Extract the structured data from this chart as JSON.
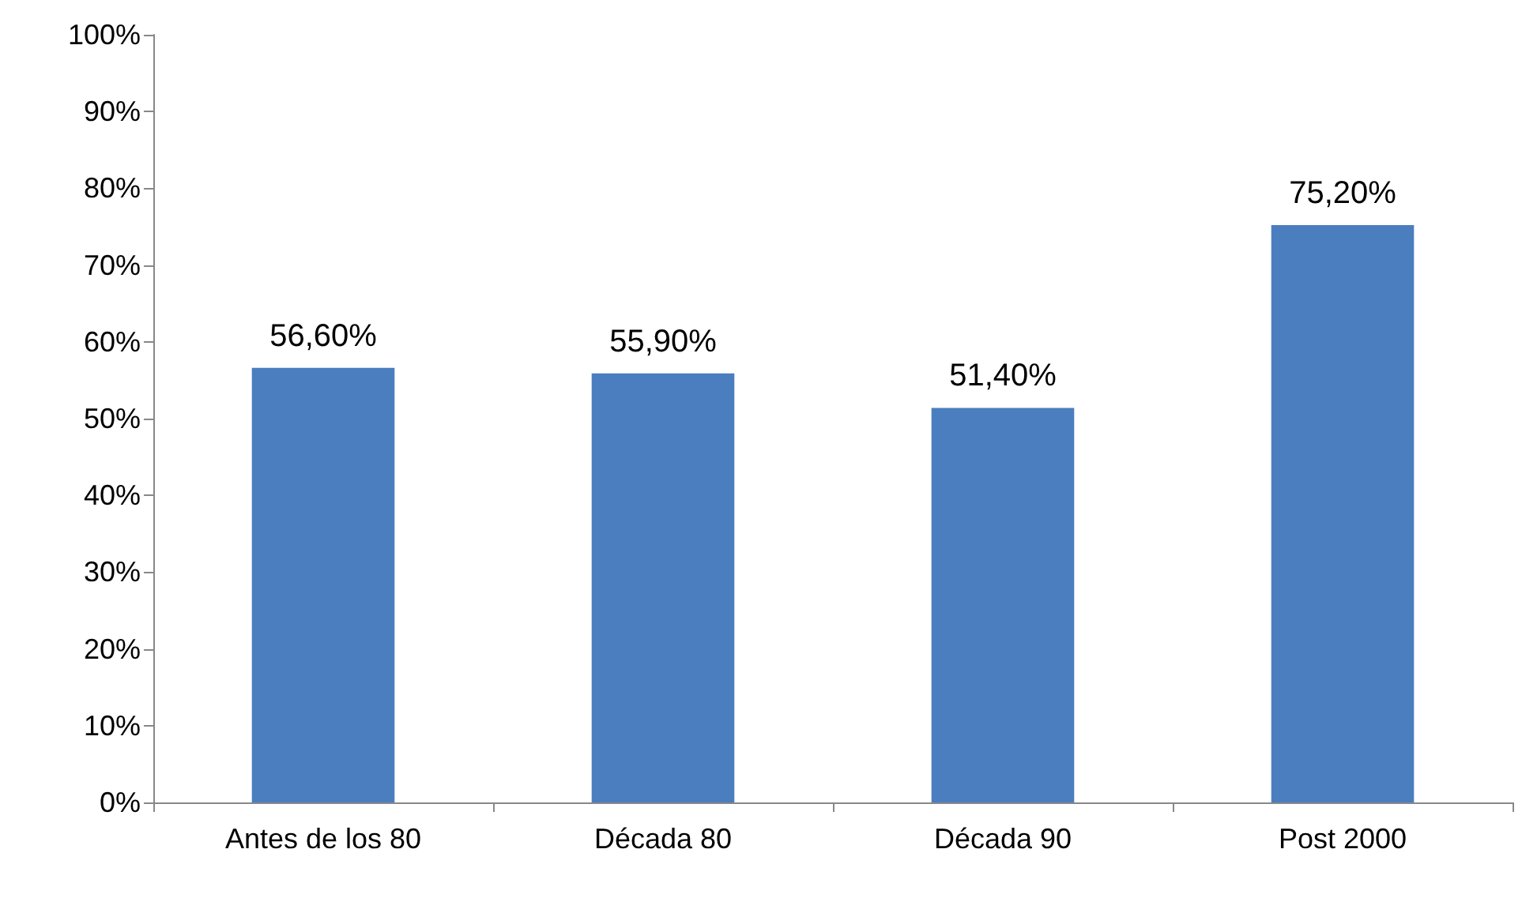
{
  "chart_data": {
    "type": "bar",
    "categories": [
      "Antes de los 80",
      "Década 80",
      "Década 90",
      "Post 2000"
    ],
    "values": [
      56.6,
      55.9,
      51.4,
      75.2
    ],
    "value_labels": [
      "56,60%",
      "55,90%",
      "51,40%",
      "75,20%"
    ],
    "color": "#4a7ebf",
    "ylim": [
      0,
      100
    ],
    "yticks": [
      {
        "value": 0,
        "label": "0%"
      },
      {
        "value": 10,
        "label": "10%"
      },
      {
        "value": 20,
        "label": "20%"
      },
      {
        "value": 30,
        "label": "30%"
      },
      {
        "value": 40,
        "label": "40%"
      },
      {
        "value": 50,
        "label": "50%"
      },
      {
        "value": 60,
        "label": "60%"
      },
      {
        "value": 70,
        "label": "70%"
      },
      {
        "value": 80,
        "label": "80%"
      },
      {
        "value": 90,
        "label": "90%"
      },
      {
        "value": 100,
        "label": "100%"
      }
    ],
    "grid": false
  }
}
